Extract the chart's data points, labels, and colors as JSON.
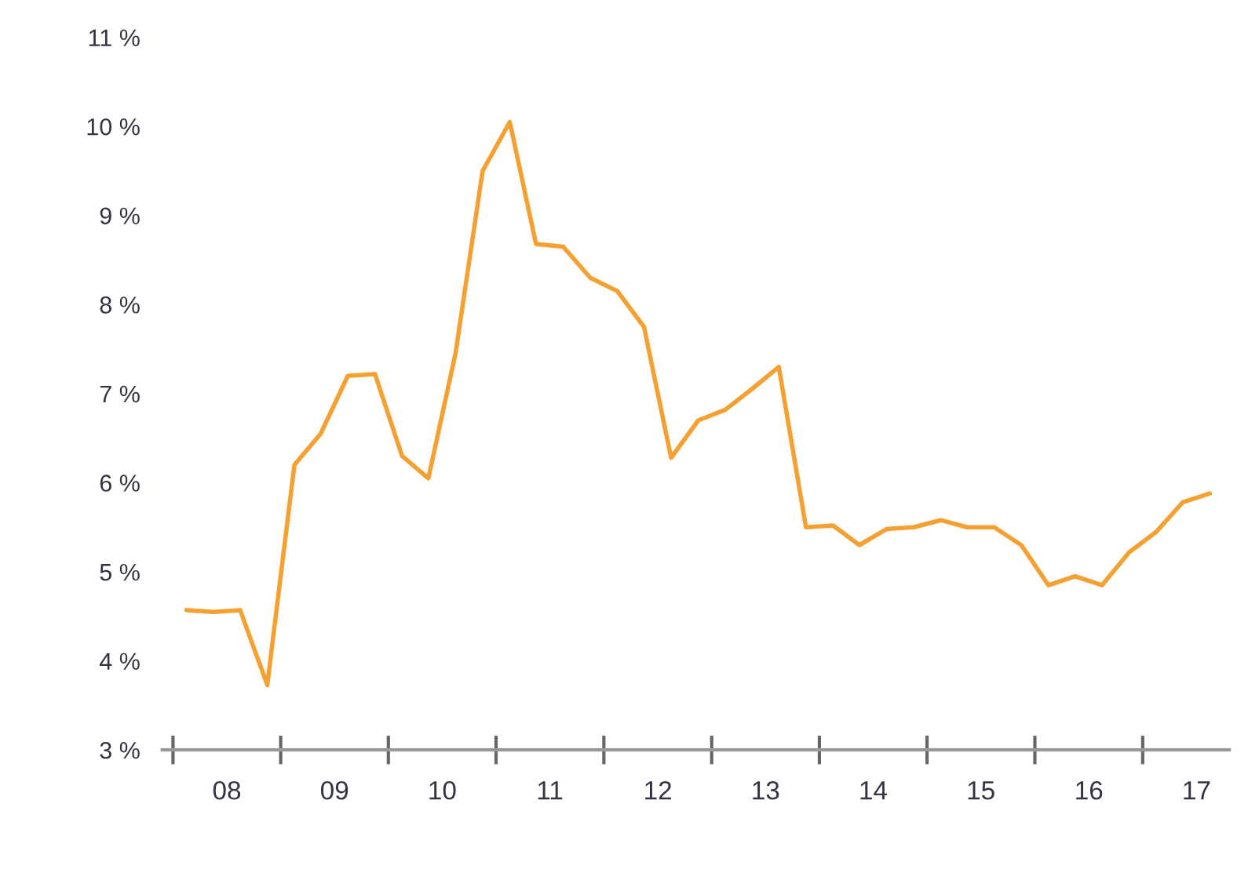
{
  "chart_data": {
    "type": "line",
    "x": [
      "2008-02-15",
      "2008-05-15",
      "2008-08-15",
      "2008-11-15",
      "2009-02-15",
      "2009-05-15",
      "2009-08-15",
      "2009-11-15",
      "2010-02-15",
      "2010-05-15",
      "2010-08-15",
      "2010-11-15",
      "2011-02-15",
      "2011-05-15",
      "2011-08-15",
      "2011-11-15",
      "2012-02-15",
      "2012-05-15",
      "2012-08-15",
      "2012-11-15",
      "2013-02-15",
      "2013-05-15",
      "2013-08-15",
      "2013-11-15",
      "2014-02-15",
      "2014-05-15",
      "2014-08-15",
      "2014-11-15",
      "2015-02-15",
      "2015-05-15",
      "2015-08-15",
      "2015-11-15",
      "2016-02-15",
      "2016-05-15",
      "2016-08-15",
      "2016-11-15",
      "2017-02-15",
      "2017-05-15",
      "2017-08-15"
    ],
    "series": [
      {
        "color": "#f5a030",
        "values": [
          4.57,
          4.55,
          4.57,
          3.73,
          6.2,
          6.55,
          7.2,
          7.22,
          6.3,
          6.05,
          7.45,
          9.5,
          10.05,
          8.68,
          8.65,
          8.3,
          8.15,
          7.75,
          6.28,
          6.7,
          6.82,
          7.05,
          7.3,
          5.5,
          5.52,
          5.3,
          5.48,
          5.5,
          5.58,
          5.5,
          5.5,
          5.3,
          4.85,
          4.95,
          4.85,
          5.22,
          5.45,
          5.78,
          5.88
        ]
      }
    ],
    "xlim": [
      "2007-11-25",
      "2017-10-20"
    ],
    "xticks": [
      {
        "value": "2008-07-01",
        "label": "08"
      },
      {
        "value": "2009-07-01",
        "label": "09"
      },
      {
        "value": "2010-07-01",
        "label": "10"
      },
      {
        "value": "2011-07-01",
        "label": "11"
      },
      {
        "value": "2012-07-01",
        "label": "12"
      },
      {
        "value": "2013-07-01",
        "label": "13"
      },
      {
        "value": "2014-07-01",
        "label": "14"
      },
      {
        "value": "2015-07-01",
        "label": "15"
      },
      {
        "value": "2016-07-01",
        "label": "16"
      },
      {
        "value": "2017-07-01",
        "label": "17"
      }
    ],
    "ylim": [
      3,
      11
    ],
    "yticks": [
      {
        "value": 3,
        "label": "3 %"
      },
      {
        "value": 4,
        "label": "4 %"
      },
      {
        "value": 5,
        "label": "5 %"
      },
      {
        "value": 6,
        "label": "6 %"
      },
      {
        "value": 7,
        "label": "7 %"
      },
      {
        "value": 8,
        "label": "8 %"
      },
      {
        "value": 9,
        "label": "9 %"
      },
      {
        "value": 10,
        "label": "10 %"
      },
      {
        "value": 11,
        "label": "11 %"
      }
    ],
    "grid": false,
    "legend": false,
    "marker": "none",
    "line_style": "solid"
  }
}
